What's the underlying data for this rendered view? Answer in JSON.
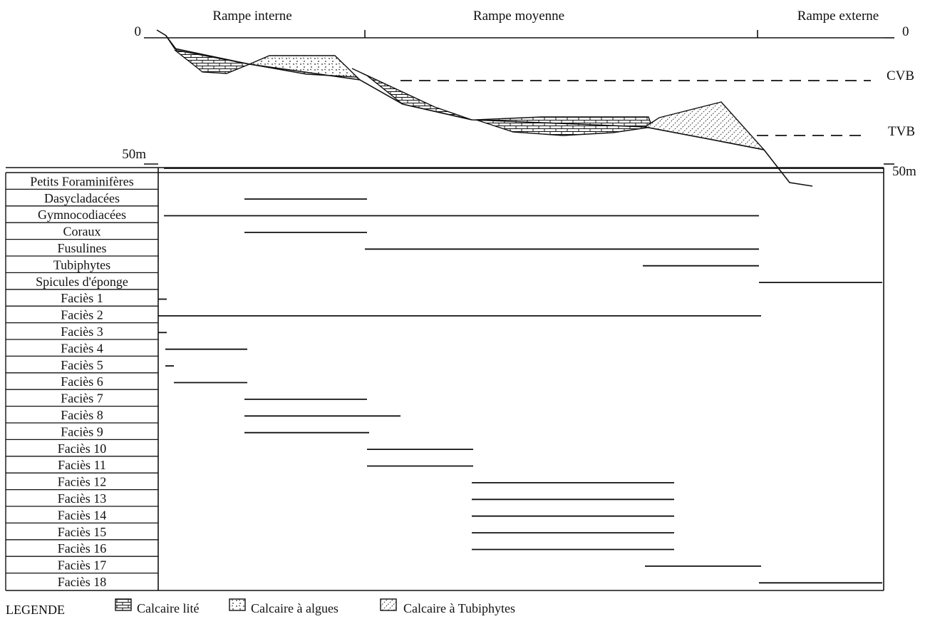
{
  "zones": [
    "Rampe interne",
    "Rampe moyenne",
    "Rampe externe"
  ],
  "depth_axis": {
    "left_top": "0",
    "left_bottom": "50m",
    "right_top": "0",
    "right_bottom": "50m"
  },
  "markers": {
    "cvb": "CVB",
    "tvb": "TVB"
  },
  "rows": [
    "Petits Foraminifères",
    "Dasycladacées",
    "Gymnocodiacées",
    "Coraux",
    "Fusulines",
    "Tubiphytes",
    "Spicules d'éponge",
    "Faciès 1",
    "Faciès 2",
    "Faciès 3",
    "Faciès 4",
    "Faciès 5",
    "Faciès 6",
    "Faciès 7",
    "Faciès 8",
    "Faciès 9",
    "Faciès 10",
    "Faciès 11",
    "Faciès 12",
    "Faciès 13",
    "Faciès 14",
    "Faciès 15",
    "Faciès 16",
    "Faciès 17",
    "Faciès 18"
  ],
  "legend": {
    "title": "LEGENDE",
    "items": [
      {
        "label": "Calcaire lité",
        "pattern": "brick-pattern-icon"
      },
      {
        "label": "Calcaire à algues",
        "pattern": "dotted-pattern-icon"
      },
      {
        "label": "Calcaire à Tubiphytes",
        "pattern": "hatched-pattern-icon"
      }
    ]
  }
}
